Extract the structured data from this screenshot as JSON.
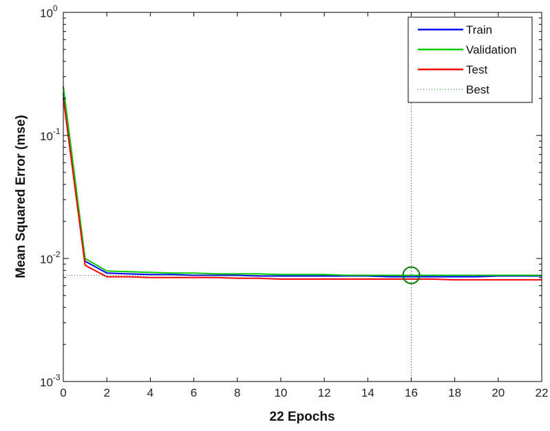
{
  "chart_data": {
    "type": "line",
    "title": "",
    "xlabel": "22 Epochs",
    "ylabel": "Mean Squared Error  (mse)",
    "xlim": [
      0,
      22
    ],
    "ylim": [
      0.001,
      1
    ],
    "yscale": "log",
    "x_ticks": [
      0,
      2,
      4,
      6,
      8,
      10,
      12,
      14,
      16,
      18,
      20,
      22
    ],
    "x_tick_labels": [
      "0",
      "2",
      "4",
      "6",
      "8",
      "10",
      "12",
      "14",
      "16",
      "18",
      "20",
      "22"
    ],
    "y_ticks": [
      {
        "value": 1,
        "base": "10",
        "exp": "0"
      },
      {
        "value": 0.1,
        "base": "10",
        "exp": "-1"
      },
      {
        "value": 0.01,
        "base": "10",
        "exp": "-2"
      },
      {
        "value": 0.001,
        "base": "10",
        "exp": "-3"
      }
    ],
    "grid": false,
    "legend_position": "top-right",
    "x": [
      0,
      1,
      2,
      3,
      4,
      5,
      6,
      7,
      8,
      9,
      10,
      11,
      12,
      13,
      14,
      15,
      16,
      17,
      18,
      19,
      20,
      21,
      22
    ],
    "series": [
      {
        "name": "Train",
        "color": "#0000ff",
        "values": [
          0.22,
          0.0095,
          0.0076,
          0.0075,
          0.0074,
          0.0074,
          0.0073,
          0.0073,
          0.0073,
          0.0072,
          0.0072,
          0.0072,
          0.0072,
          0.0072,
          0.0072,
          0.0071,
          0.0071,
          0.0071,
          0.0071,
          0.0071,
          0.0072,
          0.0072,
          0.0072
        ]
      },
      {
        "name": "Validation",
        "color": "#00cc00",
        "values": [
          0.25,
          0.01,
          0.0079,
          0.0078,
          0.0077,
          0.0076,
          0.0076,
          0.0075,
          0.0075,
          0.0075,
          0.0074,
          0.0074,
          0.0074,
          0.0073,
          0.0073,
          0.0073,
          0.0073,
          0.0073,
          0.0073,
          0.0073,
          0.0073,
          0.0073,
          0.0073
        ]
      },
      {
        "name": "Test",
        "color": "#ff0000",
        "values": [
          0.2,
          0.0088,
          0.0071,
          0.0071,
          0.007,
          0.007,
          0.007,
          0.007,
          0.0069,
          0.0069,
          0.0068,
          0.0068,
          0.0068,
          0.0068,
          0.0068,
          0.0068,
          0.0068,
          0.0068,
          0.0067,
          0.0067,
          0.0067,
          0.0067,
          0.0067
        ]
      }
    ],
    "best": {
      "name": "Best",
      "epoch": 16,
      "value": 0.0073,
      "color": "#007700"
    }
  }
}
